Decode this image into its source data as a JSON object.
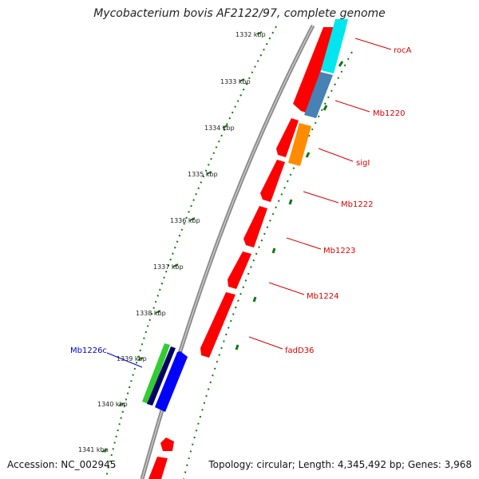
{
  "title": "Mycobacterium bovis AF2122/97, complete genome",
  "accession": "Accession: NC_002945",
  "summary": "Topology: circular; Length: 4,345,492 bp; Genes: 3,968",
  "colors": {
    "backbone": "#888888",
    "tick": "#117711",
    "forward_label": "#dd0000",
    "reverse_label": "#0000cc"
  },
  "tick_labels": [
    "1332 kbp",
    "1333 kbp",
    "1334 kbp",
    "1335 kbp",
    "1336 kbp",
    "1337 kbp",
    "1338 kbp",
    "1339 kbp",
    "1340 kbp",
    "1341 kbp"
  ],
  "genes": [
    {
      "label": "rocA",
      "strand": "forward",
      "color": "#00e5ee"
    },
    {
      "label": "Mb1220",
      "strand": "forward",
      "color": "#4682b4"
    },
    {
      "label": "sigI",
      "strand": "forward",
      "color": "#ff8c00"
    },
    {
      "label": "Mb1222",
      "strand": "forward",
      "color": "#ff0000"
    },
    {
      "label": "Mb1223",
      "strand": "forward",
      "color": "#ff0000"
    },
    {
      "label": "Mb1224",
      "strand": "forward",
      "color": "#ff0000"
    },
    {
      "label": "fadD36",
      "strand": "forward",
      "color": "#ff0000"
    },
    {
      "label": "Mb1226c",
      "strand": "reverse",
      "color": "#0000ff"
    }
  ],
  "unlabeled_features": [
    {
      "name": "green-feature",
      "color": "#33cc33"
    },
    {
      "name": "navy-feature",
      "color": "#000066"
    }
  ]
}
